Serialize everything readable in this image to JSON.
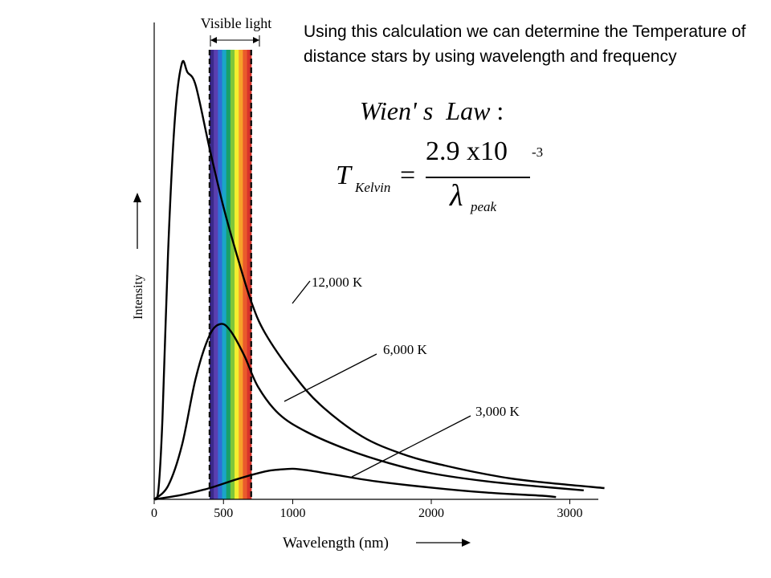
{
  "note": "Using this calculation we can determine the Temperature of distance stars by using wavelength and frequency",
  "wien": {
    "title": "Wien' s  Law",
    "colon": ":",
    "lhs": "T",
    "lhs_sub": "Kelvin",
    "equals": "=",
    "numerator": "2.9 x10",
    "numerator_sup": "-3",
    "denominator": "λ",
    "denominator_sub": "peak"
  },
  "chart_data": {
    "type": "line",
    "xlabel": "Wavelength (nm)",
    "ylabel": "Intensity",
    "xlim": [
      0,
      3250
    ],
    "ylim": [
      0,
      1.0
    ],
    "x_ticks": [
      "0",
      "500",
      "1000",
      "2000",
      "3000"
    ],
    "x_tick_values": [
      0,
      500,
      1000,
      2000,
      3000
    ],
    "grid": false,
    "visible_band": {
      "label": "Visible light",
      "range_nm": [
        400,
        700
      ]
    },
    "spectrum_colors": [
      "#3a2a8a",
      "#5a3fb0",
      "#2f6fd6",
      "#1aa5c8",
      "#19a06a",
      "#7fc63a",
      "#f2ee30",
      "#f7a12a",
      "#ea5a2c",
      "#d8332a"
    ],
    "curve_color": "#000000",
    "series": [
      {
        "name": "12,000 K",
        "x": [
          0,
          30,
          60,
          100,
          150,
          200,
          240,
          300,
          400,
          500,
          600,
          700,
          800,
          1000,
          1200,
          1500,
          1800,
          2100,
          2500,
          2800,
          3250
        ],
        "y": [
          0,
          0.02,
          0.18,
          0.55,
          0.85,
          0.97,
          0.95,
          0.92,
          0.78,
          0.65,
          0.54,
          0.44,
          0.37,
          0.28,
          0.21,
          0.14,
          0.1,
          0.075,
          0.05,
          0.038,
          0.025
        ]
      },
      {
        "name": "6,000 K",
        "x": [
          0,
          100,
          200,
          300,
          400,
          480,
          550,
          650,
          750,
          900,
          1100,
          1400,
          1700,
          2000,
          2400,
          2800,
          3100
        ],
        "y": [
          0,
          0.03,
          0.12,
          0.27,
          0.365,
          0.39,
          0.375,
          0.32,
          0.25,
          0.19,
          0.15,
          0.11,
          0.08,
          0.058,
          0.04,
          0.028,
          0.02
        ]
      },
      {
        "name": "3,000 K",
        "x": [
          0,
          200,
          400,
          600,
          800,
          900,
          1000,
          1100,
          1300,
          1600,
          2000,
          2400,
          2800,
          2900
        ],
        "y": [
          0,
          0.01,
          0.025,
          0.045,
          0.062,
          0.066,
          0.068,
          0.065,
          0.055,
          0.04,
          0.026,
          0.015,
          0.008,
          0.005
        ]
      }
    ]
  }
}
